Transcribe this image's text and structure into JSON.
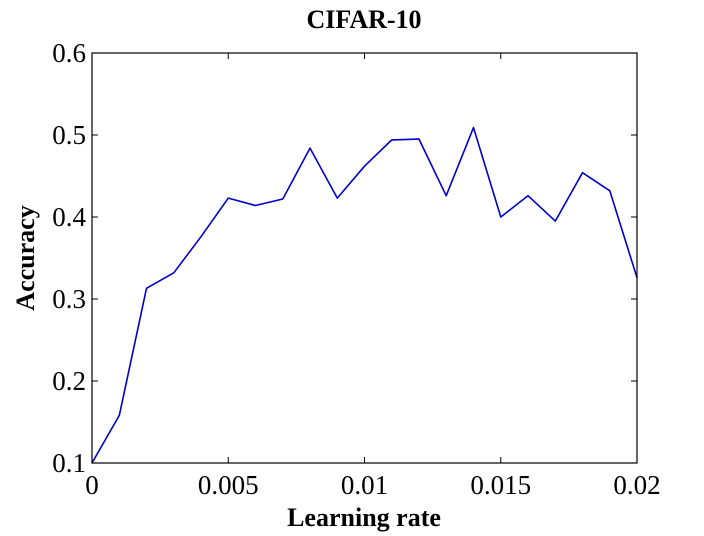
{
  "chart_data": {
    "type": "line",
    "title": "CIFAR-10",
    "xlabel": "Learning rate",
    "ylabel": "Accuracy",
    "xlim": [
      0,
      0.02
    ],
    "ylim": [
      0.1,
      0.6
    ],
    "xticks": [
      0,
      0.005,
      0.01,
      0.015,
      0.02
    ],
    "xtick_labels": [
      "0",
      "0.005",
      "0.01",
      "0.015",
      "0.02"
    ],
    "yticks": [
      0.1,
      0.2,
      0.3,
      0.4,
      0.5,
      0.6
    ],
    "ytick_labels": [
      "0.1",
      "0.2",
      "0.3",
      "0.4",
      "0.5",
      "0.6"
    ],
    "grid": false,
    "series": [
      {
        "color": "#0000cc",
        "x": [
          0,
          0.001,
          0.002,
          0.003,
          0.004,
          0.005,
          0.006,
          0.007,
          0.008,
          0.009,
          0.01,
          0.011,
          0.012,
          0.013,
          0.014,
          0.015,
          0.016,
          0.017,
          0.018,
          0.019,
          0.02
        ],
        "y": [
          0.1,
          0.158,
          0.313,
          0.332,
          0.376,
          0.423,
          0.414,
          0.422,
          0.484,
          0.423,
          0.462,
          0.494,
          0.495,
          0.426,
          0.509,
          0.4,
          0.426,
          0.395,
          0.454,
          0.432,
          0.326
        ]
      }
    ]
  }
}
